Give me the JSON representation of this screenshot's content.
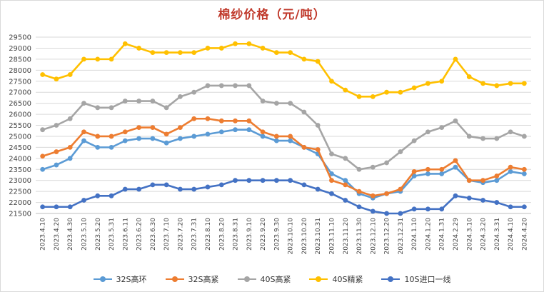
{
  "chart_data": {
    "type": "line",
    "title": "棉纱价格（元/吨）",
    "ylim": [
      21500,
      29500
    ],
    "yticks": [
      21500,
      22000,
      22500,
      23000,
      23500,
      24000,
      24500,
      25000,
      25500,
      26000,
      26500,
      27000,
      27500,
      28000,
      28500,
      29000,
      29500
    ],
    "grid": true,
    "legend": "bottom",
    "categories": [
      "2023.4.10",
      "2023.4.20",
      "2023.4.30",
      "2023.5.10",
      "2023.5.20",
      "2023.5.31",
      "2023.6.11",
      "2023.6.20",
      "2023.6.30",
      "2023.7.10",
      "2023.7.20",
      "2023.7.31",
      "2023.8.10",
      "2023.8.20",
      "2023.8.31",
      "2023.9.10",
      "2023.9.20",
      "2023.9.30",
      "2023.10.10",
      "2023.10.20",
      "2023.10.31",
      "2023.11.10",
      "2023.11.20",
      "2023.11.30",
      "2023.12.10",
      "2023.12.20",
      "2023.12.31",
      "2024.1.10",
      "2024.1.20",
      "2024.1.31",
      "2024.2.29",
      "2024.3.10",
      "2024.3.20",
      "2024.3.31",
      "2024.4.10",
      "2024.4.20"
    ],
    "series": [
      {
        "name": "32S高环",
        "color": "#5b9bd5",
        "values": [
          23500,
          23700,
          24000,
          24800,
          24500,
          24500,
          24800,
          24900,
          24900,
          24700,
          24900,
          25000,
          25100,
          25200,
          25300,
          25300,
          25000,
          24800,
          24800,
          24500,
          24200,
          23300,
          23000,
          22400,
          22200,
          22400,
          22500,
          23200,
          23300,
          23300,
          23600,
          23000,
          22900,
          23000,
          23400,
          23300
        ]
      },
      {
        "name": "32S高紧",
        "color": "#ed7d31",
        "values": [
          24100,
          24300,
          24500,
          25200,
          25000,
          25000,
          25200,
          25400,
          25400,
          25100,
          25400,
          25800,
          25800,
          25700,
          25700,
          25700,
          25200,
          25000,
          25000,
          24500,
          24400,
          23000,
          22800,
          22500,
          22300,
          22400,
          22600,
          23400,
          23500,
          23500,
          23900,
          23000,
          23000,
          23200,
          23600,
          23500
        ]
      },
      {
        "name": "40S高紧",
        "color": "#a5a5a5",
        "values": [
          25300,
          25500,
          25800,
          26500,
          26300,
          26300,
          26600,
          26600,
          26600,
          26300,
          26800,
          27000,
          27300,
          27300,
          27300,
          27300,
          26600,
          26500,
          26500,
          26100,
          25500,
          24200,
          24000,
          23500,
          23600,
          23800,
          24300,
          24800,
          25200,
          25400,
          25700,
          25000,
          24900,
          24900,
          25200,
          25000
        ]
      },
      {
        "name": "40S精紧",
        "color": "#ffc000",
        "values": [
          27800,
          27600,
          27800,
          28500,
          28500,
          28500,
          29200,
          29000,
          28800,
          28800,
          28800,
          28800,
          29000,
          29000,
          29200,
          29200,
          29000,
          28800,
          28800,
          28500,
          28400,
          27500,
          27100,
          26800,
          26800,
          27000,
          27000,
          27200,
          27400,
          27500,
          28500,
          27700,
          27400,
          27300,
          27400,
          27400
        ]
      },
      {
        "name": "10S进口一线",
        "color": "#4472c4",
        "values": [
          21800,
          21800,
          21800,
          22100,
          22300,
          22300,
          22600,
          22600,
          22800,
          22800,
          22600,
          22600,
          22700,
          22800,
          23000,
          23000,
          23000,
          23000,
          23000,
          22800,
          22600,
          22400,
          22100,
          21800,
          21600,
          21500,
          21500,
          21700,
          21700,
          21700,
          22300,
          22200,
          22100,
          22000,
          21800,
          21800
        ]
      }
    ]
  }
}
